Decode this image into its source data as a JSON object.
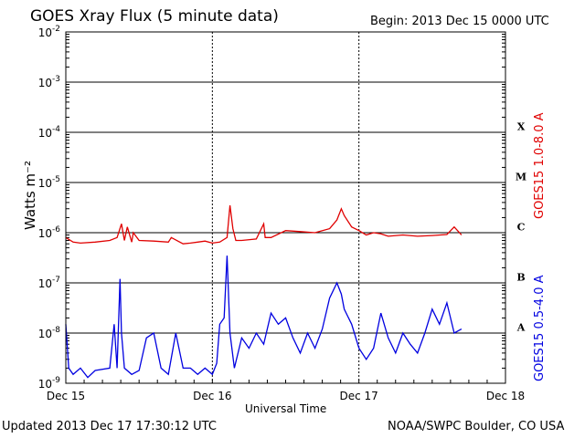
{
  "header": {
    "title": "GOES Xray Flux (5 minute data)",
    "begin": "Begin:  2013 Dec 15 0000 UTC"
  },
  "footer": {
    "updated": "Updated 2013 Dec 17 17:30:12 UTC",
    "credit": "NOAA/SWPC Boulder, CO USA"
  },
  "chart_data": {
    "type": "line",
    "title": "GOES Xray Flux (5 minute data)",
    "xlabel": "Universal Time",
    "ylabel": "Watts m⁻²",
    "yscale": "log",
    "ylim": [
      1e-09,
      0.01
    ],
    "y_ticks": [
      {
        "value": 0.01,
        "label_base": "10",
        "label_exp": "-2"
      },
      {
        "value": 0.001,
        "label_base": "10",
        "label_exp": "-3"
      },
      {
        "value": 0.0001,
        "label_base": "10",
        "label_exp": "-4"
      },
      {
        "value": 1e-05,
        "label_base": "10",
        "label_exp": "-5"
      },
      {
        "value": 1e-06,
        "label_base": "10",
        "label_exp": "-6"
      },
      {
        "value": 1e-07,
        "label_base": "10",
        "label_exp": "-7"
      },
      {
        "value": 1e-08,
        "label_base": "10",
        "label_exp": "-8"
      },
      {
        "value": 1e-09,
        "label_base": "10",
        "label_exp": "-9"
      }
    ],
    "x_ticks": [
      "Dec 15",
      "Dec 16",
      "Dec 17",
      "Dec 18"
    ],
    "xlim_days": [
      0,
      3
    ],
    "flare_classes": [
      {
        "label": "X",
        "value": 0.0001
      },
      {
        "label": "M",
        "value": 1e-05
      },
      {
        "label": "C",
        "value": 1e-06
      },
      {
        "label": "B",
        "value": 1e-07
      },
      {
        "label": "A",
        "value": 1e-08
      }
    ],
    "grid": true,
    "series": [
      {
        "name": "GOES15 1.0-8.0 A",
        "color": "#e00000",
        "x_days": [
          0.0,
          0.05,
          0.1,
          0.2,
          0.3,
          0.35,
          0.38,
          0.4,
          0.42,
          0.45,
          0.46,
          0.5,
          0.6,
          0.7,
          0.72,
          0.8,
          0.85,
          0.9,
          0.95,
          1.0,
          1.05,
          1.1,
          1.12,
          1.14,
          1.16,
          1.2,
          1.3,
          1.35,
          1.36,
          1.4,
          1.5,
          1.6,
          1.7,
          1.8,
          1.85,
          1.88,
          1.9,
          1.95,
          2.0,
          2.05,
          2.1,
          2.15,
          2.2,
          2.3,
          2.4,
          2.5,
          2.6,
          2.65,
          2.7
        ],
        "y": [
          8e-07,
          6.5e-07,
          6.2e-07,
          6.5e-07,
          7e-07,
          8e-07,
          1.5e-06,
          7e-07,
          1.3e-06,
          6.5e-07,
          1e-06,
          7e-07,
          6.8e-07,
          6.5e-07,
          8e-07,
          6e-07,
          6.2e-07,
          6.5e-07,
          6.8e-07,
          6.2e-07,
          6.5e-07,
          8e-07,
          3.5e-06,
          1.2e-06,
          7e-07,
          7e-07,
          7.5e-07,
          1.5e-06,
          8e-07,
          8e-07,
          1.1e-06,
          1.05e-06,
          1e-06,
          1.2e-06,
          1.8e-06,
          3e-06,
          2.2e-06,
          1.3e-06,
          1.1e-06,
          9e-07,
          1e-06,
          9.5e-07,
          8.5e-07,
          9e-07,
          8.5e-07,
          8.8e-07,
          9.2e-07,
          1.3e-06,
          9e-07
        ]
      },
      {
        "name": "GOES15 0.5-4.0 A",
        "color": "#0000e0",
        "x_days": [
          0.0,
          0.02,
          0.05,
          0.1,
          0.15,
          0.2,
          0.3,
          0.33,
          0.35,
          0.37,
          0.38,
          0.4,
          0.45,
          0.5,
          0.55,
          0.6,
          0.65,
          0.7,
          0.75,
          0.8,
          0.85,
          0.9,
          0.95,
          1.0,
          1.03,
          1.05,
          1.08,
          1.1,
          1.12,
          1.15,
          1.2,
          1.25,
          1.3,
          1.35,
          1.4,
          1.45,
          1.5,
          1.55,
          1.6,
          1.65,
          1.7,
          1.75,
          1.8,
          1.85,
          1.88,
          1.9,
          1.95,
          2.0,
          2.05,
          2.1,
          2.15,
          2.2,
          2.25,
          2.3,
          2.35,
          2.4,
          2.45,
          2.5,
          2.55,
          2.6,
          2.65,
          2.7
        ],
        "y": [
          1.5e-08,
          2e-09,
          1.5e-09,
          2e-09,
          1.3e-09,
          1.8e-09,
          2e-09,
          1.5e-08,
          2e-09,
          1.2e-07,
          1e-08,
          2e-09,
          1.5e-09,
          1.8e-09,
          8e-09,
          1e-08,
          2e-09,
          1.5e-09,
          1e-08,
          2e-09,
          2e-09,
          1.5e-09,
          2e-09,
          1.5e-09,
          2.5e-09,
          1.5e-08,
          2e-08,
          3.5e-07,
          1e-08,
          2e-09,
          8e-09,
          5e-09,
          1e-08,
          6e-09,
          2.5e-08,
          1.5e-08,
          2e-08,
          8e-09,
          4e-09,
          1e-08,
          5e-09,
          1.2e-08,
          5e-08,
          1e-07,
          6e-08,
          3e-08,
          1.5e-08,
          5e-09,
          3e-09,
          5e-09,
          2.5e-08,
          8e-09,
          4e-09,
          1e-08,
          6e-09,
          4e-09,
          1e-08,
          3e-08,
          1.5e-08,
          4e-08,
          1e-08,
          1.2e-08
        ]
      }
    ]
  }
}
